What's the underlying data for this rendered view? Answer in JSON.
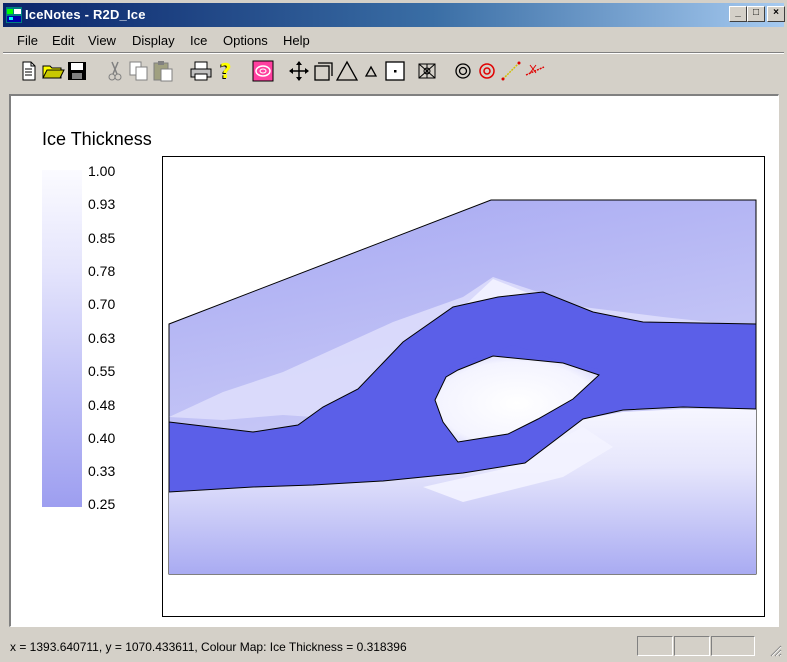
{
  "window": {
    "title": "IceNotes - R2D_Ice",
    "minimize_glyph": "_",
    "maximize_glyph": "□",
    "close_glyph": "×"
  },
  "menu": [
    "File",
    "Edit",
    "View",
    "Display",
    "Ice",
    "Options",
    "Help"
  ],
  "toolbar": {
    "icons": [
      "new-file-icon",
      "open-folder-icon",
      "save-icon",
      "cut-icon",
      "copy-icon",
      "paste-icon",
      "print-icon",
      "help-icon",
      "colour-map-icon",
      "pan-icon",
      "zoom-box-icon",
      "triangle-icon",
      "small-triangle-icon",
      "node-icon",
      "mesh-icon",
      "target-icon",
      "target-red-icon",
      "line-yellow-icon",
      "line-red-icon"
    ]
  },
  "legend": {
    "title": "Ice Thickness",
    "labels": [
      "1.00",
      "0.93",
      "0.85",
      "0.78",
      "0.70",
      "0.63",
      "0.55",
      "0.48",
      "0.40",
      "0.33",
      "0.25"
    ]
  },
  "status": {
    "text": "x = 1393.640711, y = 1070.433611, Colour Map: Ice Thickness = 0.318396"
  },
  "colors": {
    "title_active": "#0a246a",
    "channel": "#5b5fe8",
    "ice_light": "#eeeeff",
    "ice_mid": "#b9bbf5",
    "ice_dark": "#9294ee"
  }
}
